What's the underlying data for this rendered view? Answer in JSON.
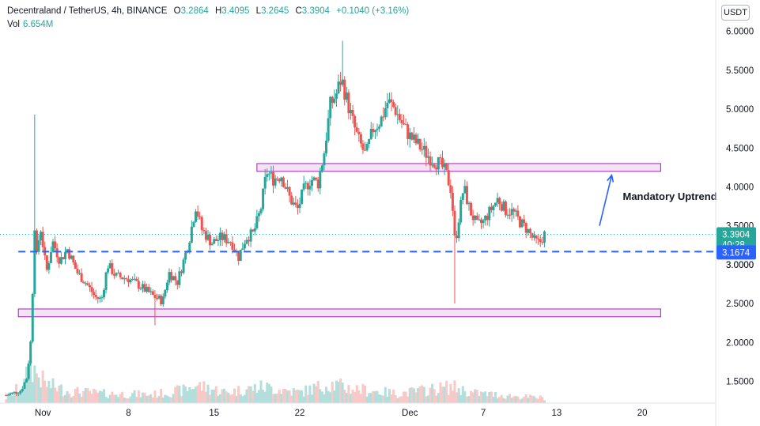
{
  "header": {
    "symbol": "Decentraland / TetherUS, 4h, BINANCE",
    "o_label": "O",
    "o_value": "3.2864",
    "h_label": "H",
    "h_value": "3.4095",
    "l_label": "L",
    "l_value": "3.2645",
    "c_label": "C",
    "c_value": "3.3904",
    "change": "+0.1040 (+3.16%)",
    "vol_label": "Vol",
    "vol_value": "6.654M"
  },
  "currency_button": "USDT",
  "colors": {
    "up": "#26a69a",
    "down": "#ef5350",
    "zone_fill": "#f3dcf7",
    "zone_stroke": "#9c27b0",
    "support_line": "#2962ff",
    "price_tag": "#26a69a",
    "support_tag": "#2962ff"
  },
  "chart_data": {
    "type": "candlestick",
    "y_axis": {
      "min": 1.22,
      "max": 6.2,
      "ticks": [
        1.5,
        2.0,
        2.5,
        3.0,
        3.5,
        4.0,
        4.5,
        5.0,
        5.5,
        6.0
      ],
      "tick_labels": [
        "1.5000",
        "2.0000",
        "2.5000",
        "3.0000",
        "3.5000",
        "4.0000",
        "4.5000",
        "5.0000",
        "5.5000",
        "6.0000"
      ]
    },
    "x_axis": {
      "tick_labels": [
        "Nov",
        "8",
        "15",
        "22",
        "Dec",
        "7",
        "13",
        "20"
      ],
      "tick_days": [
        1,
        8,
        15,
        22,
        31,
        37,
        43,
        50
      ],
      "day_range": [
        -2.5,
        56
      ]
    },
    "price_path": [
      [
        -2.0,
        1.32
      ],
      [
        -0.8,
        1.38
      ],
      [
        -0.3,
        1.55
      ],
      [
        0.0,
        2.0
      ],
      [
        0.2,
        2.8
      ],
      [
        0.35,
        3.6
      ],
      [
        0.5,
        3.1
      ],
      [
        0.8,
        3.5
      ],
      [
        1.3,
        2.9
      ],
      [
        1.8,
        3.3
      ],
      [
        2.4,
        3.05
      ],
      [
        3.0,
        3.2
      ],
      [
        3.8,
        2.9
      ],
      [
        4.6,
        2.75
      ],
      [
        5.3,
        2.58
      ],
      [
        5.8,
        2.55
      ],
      [
        6.3,
        3.0
      ],
      [
        7.0,
        2.85
      ],
      [
        8.0,
        2.82
      ],
      [
        9.0,
        2.72
      ],
      [
        10.0,
        2.6
      ],
      [
        10.8,
        2.53
      ],
      [
        11.3,
        2.9
      ],
      [
        12.0,
        2.78
      ],
      [
        12.6,
        3.1
      ],
      [
        13.0,
        3.35
      ],
      [
        13.5,
        3.75
      ],
      [
        14.0,
        3.45
      ],
      [
        14.8,
        3.28
      ],
      [
        15.6,
        3.35
      ],
      [
        16.4,
        3.3
      ],
      [
        17.0,
        3.1
      ],
      [
        17.6,
        3.35
      ],
      [
        18.2,
        3.4
      ],
      [
        18.8,
        3.7
      ],
      [
        19.3,
        4.2
      ],
      [
        19.8,
        4.1
      ],
      [
        20.5,
        4.15
      ],
      [
        21.2,
        3.85
      ],
      [
        21.8,
        3.7
      ],
      [
        22.3,
        3.95
      ],
      [
        22.9,
        4.1
      ],
      [
        23.5,
        4.05
      ],
      [
        24.0,
        4.45
      ],
      [
        24.5,
        5.05
      ],
      [
        25.0,
        5.2
      ],
      [
        25.4,
        5.4
      ],
      [
        25.8,
        5.15
      ],
      [
        26.3,
        4.85
      ],
      [
        26.8,
        4.6
      ],
      [
        27.4,
        4.4
      ],
      [
        28.0,
        4.75
      ],
      [
        28.6,
        4.85
      ],
      [
        29.2,
        5.1
      ],
      [
        29.8,
        5.0
      ],
      [
        30.4,
        4.8
      ],
      [
        31.0,
        4.65
      ],
      [
        31.6,
        4.55
      ],
      [
        32.2,
        4.45
      ],
      [
        32.8,
        4.35
      ],
      [
        33.4,
        4.3
      ],
      [
        33.9,
        4.2
      ],
      [
        34.4,
        3.95
      ],
      [
        34.7,
        3.25
      ],
      [
        35.0,
        3.6
      ],
      [
        35.4,
        4.0
      ],
      [
        35.9,
        3.7
      ],
      [
        36.5,
        3.5
      ],
      [
        37.0,
        3.55
      ],
      [
        37.6,
        3.7
      ],
      [
        38.2,
        3.85
      ],
      [
        38.8,
        3.7
      ],
      [
        39.4,
        3.68
      ],
      [
        40.0,
        3.55
      ],
      [
        40.6,
        3.45
      ],
      [
        41.2,
        3.3
      ],
      [
        41.6,
        3.28
      ],
      [
        42.0,
        3.39
      ]
    ],
    "spikes": [
      {
        "day": 0.4,
        "high": 4.93
      },
      {
        "day": 25.5,
        "high": 5.88
      },
      {
        "day": 34.7,
        "low": 2.5
      },
      {
        "day": 10.2,
        "low": 2.22
      }
    ],
    "volume_path": [
      [
        -2.0,
        0.12
      ],
      [
        -0.5,
        0.45
      ],
      [
        0.0,
        0.9
      ],
      [
        0.5,
        0.7
      ],
      [
        1.2,
        0.45
      ],
      [
        3.0,
        0.28
      ],
      [
        6.0,
        0.22
      ],
      [
        10.0,
        0.2
      ],
      [
        12.5,
        0.3
      ],
      [
        13.5,
        0.42
      ],
      [
        16.0,
        0.25
      ],
      [
        19.0,
        0.38
      ],
      [
        22.0,
        0.25
      ],
      [
        24.5,
        0.45
      ],
      [
        26.0,
        0.35
      ],
      [
        30.0,
        0.22
      ],
      [
        34.5,
        0.38
      ],
      [
        36.0,
        0.24
      ],
      [
        40.0,
        0.15
      ],
      [
        42.0,
        0.12
      ]
    ],
    "zones": [
      {
        "day_start": 18.5,
        "day_end": 51.5,
        "price_low": 4.2,
        "price_high": 4.3
      },
      {
        "day_start": -1.0,
        "day_end": 51.5,
        "price_low": 2.33,
        "price_high": 2.43
      }
    ],
    "support_level": 3.1674,
    "last_price": 3.3904,
    "arrow": {
      "from_day": 46.5,
      "from_price": 3.5,
      "to_day": 47.5,
      "to_price": 4.15
    },
    "annotation": "Mandatory Uptrend",
    "last_price_label": "3.3904",
    "countdown_label": "40:28",
    "support_label": "3.1674",
    "hidden_tick_label": "3.0000"
  }
}
